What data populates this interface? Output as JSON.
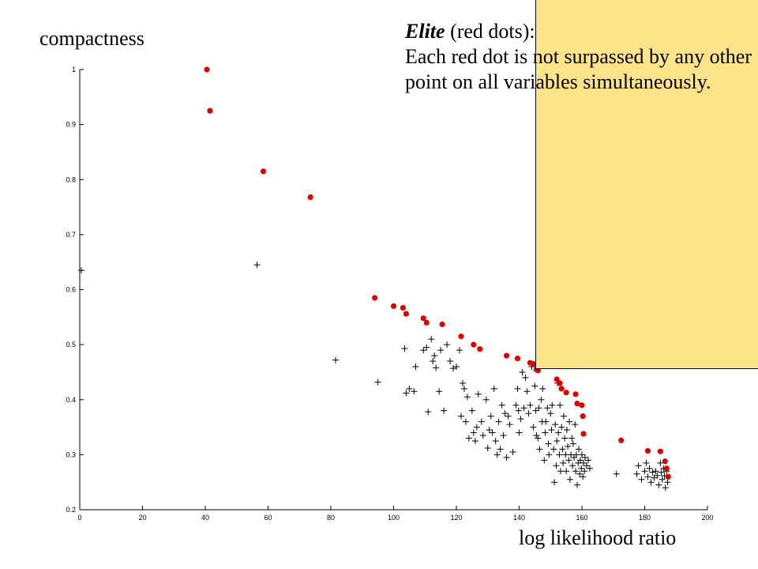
{
  "annotation": {
    "title": "Elite",
    "title_suffix": " (red dots):",
    "body": "Each red dot is not surpassed  by any other point on all variables simultaneously."
  },
  "chart_data": {
    "type": "scatter",
    "xlabel": "log likelihood ratio",
    "ylabel": "compactness",
    "xlim": [
      0,
      200
    ],
    "ylim": [
      0.2,
      1
    ],
    "x_ticks": [
      0,
      20,
      40,
      60,
      80,
      100,
      120,
      140,
      160,
      180,
      200
    ],
    "y_ticks": [
      0.2,
      0.3,
      0.4,
      0.5,
      0.6,
      0.7,
      0.8,
      0.9,
      1
    ],
    "grid": false,
    "series": [
      {
        "marker": "plus",
        "color": "#000000",
        "points": [
          [
            0.5,
            0.635
          ],
          [
            56.5,
            0.645
          ],
          [
            81.5,
            0.472
          ],
          [
            95,
            0.432
          ],
          [
            103.5,
            0.493
          ],
          [
            104,
            0.412
          ],
          [
            105,
            0.42
          ],
          [
            106.5,
            0.415
          ],
          [
            107,
            0.46
          ],
          [
            109.5,
            0.49
          ],
          [
            110.5,
            0.495
          ],
          [
            111,
            0.378
          ],
          [
            112,
            0.51
          ],
          [
            112.5,
            0.47
          ],
          [
            113,
            0.48
          ],
          [
            113.5,
            0.458
          ],
          [
            114.5,
            0.415
          ],
          [
            115,
            0.49
          ],
          [
            116,
            0.38
          ],
          [
            117,
            0.5
          ],
          [
            118,
            0.47
          ],
          [
            119,
            0.457
          ],
          [
            120,
            0.46
          ],
          [
            121,
            0.49
          ],
          [
            121.5,
            0.37
          ],
          [
            122,
            0.43
          ],
          [
            122.5,
            0.42
          ],
          [
            123,
            0.36
          ],
          [
            123.5,
            0.405
          ],
          [
            124,
            0.33
          ],
          [
            125,
            0.38
          ],
          [
            125.5,
            0.34
          ],
          [
            126,
            0.325
          ],
          [
            126.5,
            0.35
          ],
          [
            127,
            0.41
          ],
          [
            128,
            0.36
          ],
          [
            128.5,
            0.335
          ],
          [
            129.5,
            0.4
          ],
          [
            130,
            0.312
          ],
          [
            130.5,
            0.345
          ],
          [
            131,
            0.37
          ],
          [
            131.5,
            0.34
          ],
          [
            132,
            0.42
          ],
          [
            132.5,
            0.325
          ],
          [
            133,
            0.3
          ],
          [
            133.5,
            0.36
          ],
          [
            134,
            0.31
          ],
          [
            134.5,
            0.39
          ],
          [
            135,
            0.335
          ],
          [
            135.5,
            0.375
          ],
          [
            136,
            0.295
          ],
          [
            136.5,
            0.37
          ],
          [
            137,
            0.355
          ],
          [
            138,
            0.305
          ],
          [
            139,
            0.39
          ],
          [
            139.5,
            0.42
          ],
          [
            139.8,
            0.38
          ],
          [
            140,
            0.34
          ],
          [
            140.5,
            0.365
          ],
          [
            141,
            0.45
          ],
          [
            141.5,
            0.385
          ],
          [
            142,
            0.44
          ],
          [
            142.5,
            0.415
          ],
          [
            143,
            0.375
          ],
          [
            143.5,
            0.39
          ],
          [
            144,
            0.46
          ],
          [
            144.5,
            0.35
          ],
          [
            145,
            0.425
          ],
          [
            145.3,
            0.38
          ],
          [
            145.5,
            0.335
          ],
          [
            146,
            0.33
          ],
          [
            146.3,
            0.385
          ],
          [
            146.5,
            0.31
          ],
          [
            147,
            0.4
          ],
          [
            147.3,
            0.36
          ],
          [
            147.5,
            0.42
          ],
          [
            148,
            0.29
          ],
          [
            148.3,
            0.34
          ],
          [
            148.5,
            0.36
          ],
          [
            149,
            0.385
          ],
          [
            149.3,
            0.32
          ],
          [
            149.5,
            0.3
          ],
          [
            150,
            0.375
          ],
          [
            150.3,
            0.345
          ],
          [
            150.5,
            0.39
          ],
          [
            151,
            0.31
          ],
          [
            151.2,
            0.25
          ],
          [
            151.5,
            0.355
          ],
          [
            151.8,
            0.28
          ],
          [
            152,
            0.325
          ],
          [
            152.2,
            0.43
          ],
          [
            152.5,
            0.34
          ],
          [
            152.8,
            0.3
          ],
          [
            153,
            0.39
          ],
          [
            153.2,
            0.27
          ],
          [
            153.5,
            0.35
          ],
          [
            153.8,
            0.31
          ],
          [
            154,
            0.285
          ],
          [
            154.2,
            0.37
          ],
          [
            154.5,
            0.33
          ],
          [
            154.8,
            0.3
          ],
          [
            155,
            0.27
          ],
          [
            155.2,
            0.345
          ],
          [
            155.5,
            0.315
          ],
          [
            155.8,
            0.29
          ],
          [
            156,
            0.36
          ],
          [
            156.2,
            0.255
          ],
          [
            156.5,
            0.3
          ],
          [
            156.8,
            0.33
          ],
          [
            157,
            0.28
          ],
          [
            157.2,
            0.32
          ],
          [
            157.5,
            0.295
          ],
          [
            157.8,
            0.355
          ],
          [
            158,
            0.27
          ],
          [
            158.2,
            0.3
          ],
          [
            158.5,
            0.245
          ],
          [
            158.8,
            0.285
          ],
          [
            159,
            0.31
          ],
          [
            159.3,
            0.265
          ],
          [
            159.5,
            0.29
          ],
          [
            159.8,
            0.275
          ],
          [
            160,
            0.3
          ],
          [
            160.3,
            0.26
          ],
          [
            160.5,
            0.285
          ],
          [
            160.8,
            0.27
          ],
          [
            161,
            0.295
          ],
          [
            161.5,
            0.28
          ],
          [
            162,
            0.29
          ],
          [
            162.5,
            0.275
          ],
          [
            171,
            0.265
          ],
          [
            177.5,
            0.265
          ],
          [
            178,
            0.28
          ],
          [
            179,
            0.255
          ],
          [
            180,
            0.27
          ],
          [
            180.5,
            0.285
          ],
          [
            181,
            0.26
          ],
          [
            181.5,
            0.275
          ],
          [
            182,
            0.25
          ],
          [
            182.5,
            0.268
          ],
          [
            183,
            0.258
          ],
          [
            183.5,
            0.27
          ],
          [
            184,
            0.262
          ],
          [
            184.5,
            0.245
          ],
          [
            185,
            0.285
          ],
          [
            185.3,
            0.268
          ],
          [
            185.6,
            0.255
          ],
          [
            186,
            0.275
          ],
          [
            186.3,
            0.262
          ],
          [
            186.6,
            0.24
          ],
          [
            187,
            0.27
          ],
          [
            187.3,
            0.25
          ]
        ]
      },
      {
        "marker": "dot",
        "color": "#e00000",
        "points": [
          [
            40.5,
            1.0
          ],
          [
            41.5,
            0.925
          ],
          [
            58.5,
            0.815
          ],
          [
            73.5,
            0.768
          ],
          [
            94,
            0.585
          ],
          [
            100,
            0.57
          ],
          [
            103,
            0.567
          ],
          [
            104,
            0.556
          ],
          [
            109.5,
            0.548
          ],
          [
            110.5,
            0.54
          ],
          [
            115.5,
            0.537
          ],
          [
            121.5,
            0.515
          ],
          [
            125.5,
            0.5
          ],
          [
            127.5,
            0.492
          ],
          [
            136,
            0.48
          ],
          [
            139.5,
            0.475
          ],
          [
            143.5,
            0.467
          ],
          [
            144.5,
            0.465
          ],
          [
            145.5,
            0.455
          ],
          [
            146,
            0.453
          ],
          [
            152,
            0.437
          ],
          [
            153,
            0.43
          ],
          [
            153.5,
            0.42
          ],
          [
            155,
            0.413
          ],
          [
            158,
            0.41
          ],
          [
            158.5,
            0.393
          ],
          [
            160,
            0.39
          ],
          [
            160.3,
            0.37
          ],
          [
            160.5,
            0.338
          ],
          [
            172.5,
            0.326
          ],
          [
            181,
            0.307
          ],
          [
            185,
            0.306
          ],
          [
            186.5,
            0.288
          ],
          [
            187,
            0.275
          ],
          [
            187.5,
            0.26
          ]
        ]
      }
    ]
  }
}
